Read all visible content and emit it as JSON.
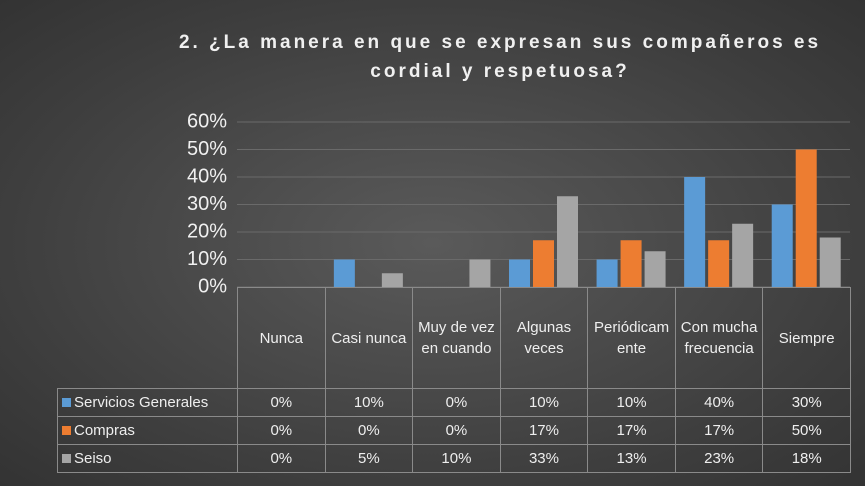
{
  "chart_data": {
    "type": "bar",
    "title": "2. ¿La manera en que se expresan sus compañeros es cordial y respetuosa?",
    "categories": [
      "Nunca",
      "Casi nunca",
      "Muy de vez en cuando",
      "Algunas veces",
      "Periódicamente",
      "Con mucha frecuencia",
      "Siempre"
    ],
    "series": [
      {
        "name": "Servicios Generales",
        "color": "#5b9bd5",
        "values": [
          0,
          10,
          0,
          10,
          10,
          40,
          30
        ],
        "value_labels": [
          "0%",
          "10%",
          "0%",
          "10%",
          "10%",
          "40%",
          "30%"
        ]
      },
      {
        "name": "Compras",
        "color": "#ed7d31",
        "values": [
          0,
          0,
          0,
          17,
          17,
          17,
          50
        ],
        "value_labels": [
          "0%",
          "0%",
          "0%",
          "17%",
          "17%",
          "17%",
          "50%"
        ]
      },
      {
        "name": "Seiso",
        "color": "#a5a5a5",
        "values": [
          0,
          5,
          10,
          33,
          13,
          23,
          18
        ],
        "value_labels": [
          "0%",
          "5%",
          "10%",
          "33%",
          "13%",
          "23%",
          "18%"
        ]
      }
    ],
    "ylim": [
      0,
      60
    ],
    "yticks": [
      {
        "value": 0,
        "label": "0%"
      },
      {
        "value": 10,
        "label": "10%"
      },
      {
        "value": 20,
        "label": "20%"
      },
      {
        "value": 30,
        "label": "30%"
      },
      {
        "value": 40,
        "label": "40%"
      },
      {
        "value": 50,
        "label": "50%"
      },
      {
        "value": 60,
        "label": "60%"
      }
    ],
    "grid": true
  }
}
